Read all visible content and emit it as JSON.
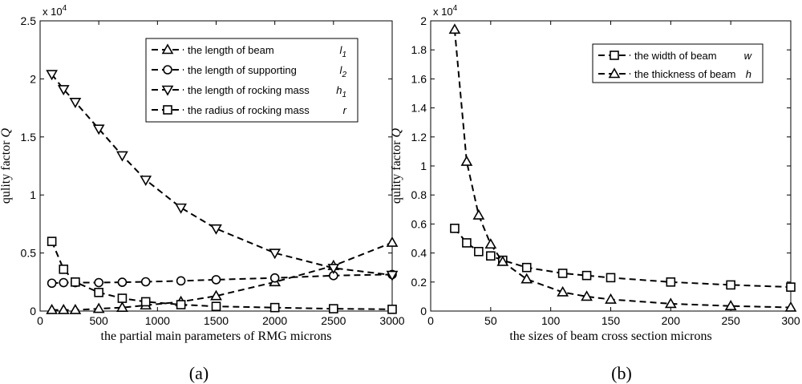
{
  "chart_data": [
    {
      "type": "line",
      "caption": "(a)",
      "xlabel": "the partial main parameters of RMG  microns",
      "ylabel": "qulity factor",
      "ylabel_symbol": "Q",
      "exponent": {
        "base": "x 10",
        "power": "4"
      },
      "xlim": [
        0,
        3000
      ],
      "ylim": [
        0,
        2.5
      ],
      "xticks": [
        0,
        500,
        1000,
        1500,
        2000,
        2500,
        3000
      ],
      "yticks": [
        0,
        0.5,
        1,
        1.5,
        2,
        2.5
      ],
      "xtick_labels": [
        "0",
        "500",
        "1000",
        "1500",
        "2000",
        "2500",
        "3000"
      ],
      "ytick_labels": [
        "0",
        "0.5",
        "1",
        "1.5",
        "2",
        "2.5"
      ],
      "legend_position": "top-right",
      "series": [
        {
          "name": "the length of beam",
          "symbol": "l",
          "subscript": "1",
          "marker": "triangle-up",
          "x": [
            100,
            200,
            300,
            500,
            700,
            900,
            1200,
            1500,
            2000,
            2500,
            3000
          ],
          "values": [
            0.01,
            0.01,
            0.01,
            0.02,
            0.03,
            0.05,
            0.08,
            0.13,
            0.25,
            0.39,
            0.59
          ]
        },
        {
          "name": "the length of supporting",
          "symbol": "l",
          "subscript": "2",
          "marker": "circle",
          "x": [
            100,
            200,
            300,
            500,
            700,
            900,
            1200,
            1500,
            2000,
            2500,
            3000
          ],
          "values": [
            0.24,
            0.245,
            0.245,
            0.245,
            0.248,
            0.252,
            0.26,
            0.27,
            0.285,
            0.305,
            0.315
          ]
        },
        {
          "name": "the length of rocking mass",
          "symbol": "h",
          "subscript": "1",
          "marker": "triangle-down",
          "x": [
            100,
            200,
            300,
            500,
            700,
            900,
            1200,
            1500,
            2000,
            2500,
            3000
          ],
          "values": [
            2.04,
            1.91,
            1.8,
            1.57,
            1.34,
            1.13,
            0.89,
            0.71,
            0.5,
            0.37,
            0.31
          ]
        },
        {
          "name": "the radius of rocking mass",
          "symbol": "r",
          "subscript": "",
          "marker": "square",
          "x": [
            100,
            200,
            300,
            500,
            700,
            900,
            1200,
            1500,
            2000,
            2500,
            3000
          ],
          "values": [
            0.6,
            0.36,
            0.25,
            0.16,
            0.11,
            0.08,
            0.055,
            0.04,
            0.03,
            0.02,
            0.015
          ]
        }
      ]
    },
    {
      "type": "line",
      "caption": "(b)",
      "xlabel": "the sizes of beam cross section  microns",
      "ylabel": "qulity factor",
      "ylabel_symbol": "Q",
      "exponent": {
        "base": "x 10",
        "power": "4"
      },
      "xlim": [
        0,
        300
      ],
      "ylim": [
        0,
        2
      ],
      "xticks": [
        0,
        50,
        100,
        150,
        200,
        250,
        300
      ],
      "yticks": [
        0,
        0.2,
        0.4,
        0.6,
        0.8,
        1,
        1.2,
        1.4,
        1.6,
        1.8,
        2
      ],
      "xtick_labels": [
        "0",
        "50",
        "100",
        "150",
        "200",
        "250",
        "300"
      ],
      "ytick_labels": [
        "0",
        "0.2",
        "0.4",
        "0.6",
        "0.8",
        "1",
        "1.2",
        "1.4",
        "1.6",
        "1.8",
        "2"
      ],
      "legend_position": "top-right",
      "series": [
        {
          "name": "the width of beam",
          "symbol": "w",
          "subscript": "",
          "marker": "square",
          "x": [
            20,
            30,
            40,
            50,
            60,
            80,
            110,
            130,
            150,
            200,
            250,
            300
          ],
          "values": [
            0.57,
            0.47,
            0.41,
            0.38,
            0.35,
            0.3,
            0.26,
            0.245,
            0.23,
            0.2,
            0.18,
            0.165
          ]
        },
        {
          "name": "the thickness of beam",
          "symbol": "h",
          "subscript": "",
          "marker": "triangle-up",
          "x": [
            20,
            30,
            40,
            50,
            60,
            80,
            110,
            130,
            150,
            200,
            250,
            300
          ],
          "values": [
            1.94,
            1.03,
            0.66,
            0.46,
            0.34,
            0.22,
            0.13,
            0.1,
            0.08,
            0.05,
            0.035,
            0.025
          ]
        }
      ]
    }
  ]
}
